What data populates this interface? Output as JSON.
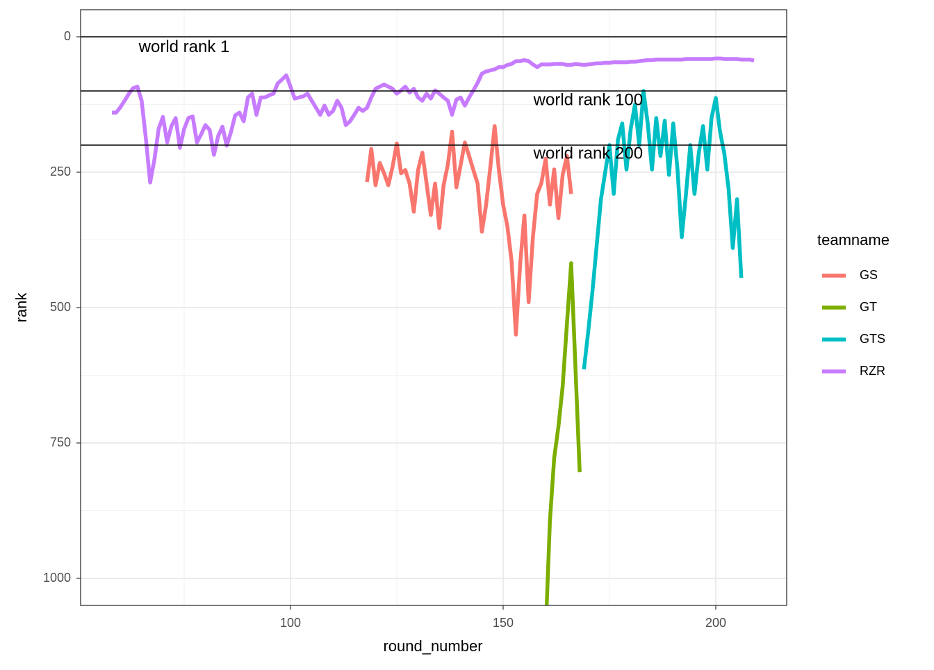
{
  "chart_data": {
    "type": "line",
    "x_label": "round_number",
    "y_label": "rank",
    "xlim": [
      50.65,
      216.67
    ],
    "ylim": [
      -50,
      1050
    ],
    "y_reverse": true,
    "xticks": [
      100,
      150,
      200
    ],
    "yticks": [
      0,
      250,
      500,
      750,
      1000
    ],
    "x_minor_ticks": [
      75,
      125,
      175
    ],
    "y_minor_ticks": [
      125,
      375,
      625,
      875
    ],
    "grid": true,
    "hlines": [
      {
        "value": 0,
        "label": "world rank 1",
        "label_x": 75,
        "label_y": 20
      },
      {
        "value": 100,
        "label": "world rank 100",
        "label_x": 170,
        "label_y": 118
      },
      {
        "value": 200,
        "label": "world rank 200",
        "label_x": 170,
        "label_y": 217
      }
    ],
    "legend_title": "teamname",
    "legend_position": "right",
    "series": [
      {
        "name": "GS",
        "color": "#F8766D",
        "x": [
          118,
          119,
          120,
          121,
          122,
          123,
          124,
          125,
          126,
          127,
          128,
          129,
          130,
          131,
          132,
          133,
          134,
          135,
          136,
          137,
          138,
          139,
          140,
          141,
          142,
          143,
          144,
          145,
          146,
          147,
          148,
          149,
          150,
          151,
          152,
          153,
          154,
          155,
          156,
          157,
          158,
          159,
          160,
          161,
          162,
          163,
          164,
          165,
          166
        ],
        "values": [
          268,
          207,
          274,
          233,
          252,
          274,
          240,
          197,
          252,
          246,
          271,
          323,
          246,
          214,
          271,
          329,
          271,
          353,
          274,
          236,
          175,
          278,
          237,
          195,
          220,
          246,
          271,
          360,
          310,
          240,
          165,
          246,
          310,
          350,
          415,
          550,
          420,
          330,
          490,
          370,
          290,
          270,
          225,
          310,
          245,
          335,
          255,
          220,
          290
        ]
      },
      {
        "name": "GT",
        "color": "#7CAE00",
        "x": [
          160,
          161,
          162,
          163,
          164,
          165,
          166,
          167,
          168
        ],
        "values": [
          1100,
          894,
          778,
          720,
          645,
          530,
          418,
          610,
          804
        ]
      },
      {
        "name": "GTS",
        "color": "#00BFC4",
        "x": [
          169,
          170,
          171,
          172,
          173,
          174,
          175,
          176,
          177,
          178,
          179,
          180,
          181,
          182,
          183,
          184,
          185,
          186,
          187,
          188,
          189,
          190,
          191,
          192,
          193,
          194,
          195,
          196,
          197,
          198,
          199,
          200,
          201,
          202,
          203,
          204,
          205,
          206
        ],
        "values": [
          614,
          545,
          470,
          385,
          300,
          250,
          200,
          290,
          190,
          160,
          245,
          170,
          125,
          200,
          100,
          160,
          245,
          150,
          220,
          155,
          255,
          160,
          245,
          370,
          290,
          200,
          290,
          215,
          165,
          245,
          150,
          113,
          175,
          215,
          280,
          390,
          300,
          445
        ]
      },
      {
        "name": "RZR",
        "color": "#C77CFF",
        "x": [
          58,
          59,
          60,
          61,
          62,
          63,
          64,
          65,
          66,
          67,
          68,
          69,
          70,
          71,
          72,
          73,
          74,
          75,
          76,
          77,
          78,
          79,
          80,
          81,
          82,
          83,
          84,
          85,
          86,
          87,
          88,
          89,
          90,
          91,
          92,
          93,
          94,
          95,
          96,
          97,
          98,
          99,
          100,
          101,
          102,
          103,
          104,
          105,
          106,
          107,
          108,
          109,
          110,
          111,
          112,
          113,
          114,
          115,
          116,
          117,
          118,
          119,
          120,
          121,
          122,
          123,
          124,
          125,
          126,
          127,
          128,
          129,
          130,
          131,
          132,
          133,
          134,
          135,
          136,
          137,
          138,
          139,
          140,
          141,
          142,
          143,
          144,
          145,
          146,
          147,
          148,
          149,
          150,
          151,
          152,
          153,
          154,
          155,
          156,
          157,
          158,
          159,
          160,
          161,
          162,
          163,
          164,
          165,
          166,
          167,
          168,
          169,
          170,
          171,
          172,
          173,
          174,
          175,
          176,
          177,
          178,
          179,
          180,
          181,
          182,
          183,
          184,
          185,
          186,
          187,
          188,
          189,
          190,
          191,
          192,
          193,
          194,
          195,
          196,
          197,
          198,
          199,
          200,
          201,
          202,
          203,
          204,
          205,
          206,
          207,
          208,
          209
        ],
        "values": [
          140,
          140,
          130,
          118,
          105,
          95,
          92,
          118,
          188,
          269,
          227,
          170,
          148,
          195,
          165,
          150,
          205,
          170,
          150,
          147,
          195,
          180,
          163,
          172,
          218,
          183,
          166,
          201,
          176,
          145,
          140,
          156,
          112,
          105,
          144,
          112,
          112,
          108,
          105,
          86,
          79,
          71,
          92,
          114,
          112,
          110,
          105,
          118,
          131,
          144,
          127,
          144,
          137,
          118,
          131,
          163,
          156,
          144,
          131,
          137,
          131,
          112,
          96,
          92,
          88,
          92,
          96,
          105,
          99,
          92,
          103,
          96,
          112,
          118,
          105,
          114,
          99,
          105,
          112,
          118,
          144,
          116,
          112,
          127,
          112,
          99,
          85,
          68,
          64,
          62,
          60,
          56,
          56,
          52,
          50,
          45,
          45,
          43,
          45,
          51,
          56,
          51,
          51,
          51,
          50,
          50,
          50,
          52,
          52,
          50,
          51,
          52,
          51,
          50,
          49,
          49,
          48,
          48,
          47,
          47,
          47,
          47,
          46,
          46,
          45,
          44,
          43,
          43,
          42,
          42,
          42,
          42,
          42,
          42,
          42,
          41,
          41,
          41,
          41,
          41,
          41,
          41,
          40,
          40,
          41,
          41,
          41,
          41,
          42,
          42,
          42,
          44
        ]
      }
    ]
  }
}
